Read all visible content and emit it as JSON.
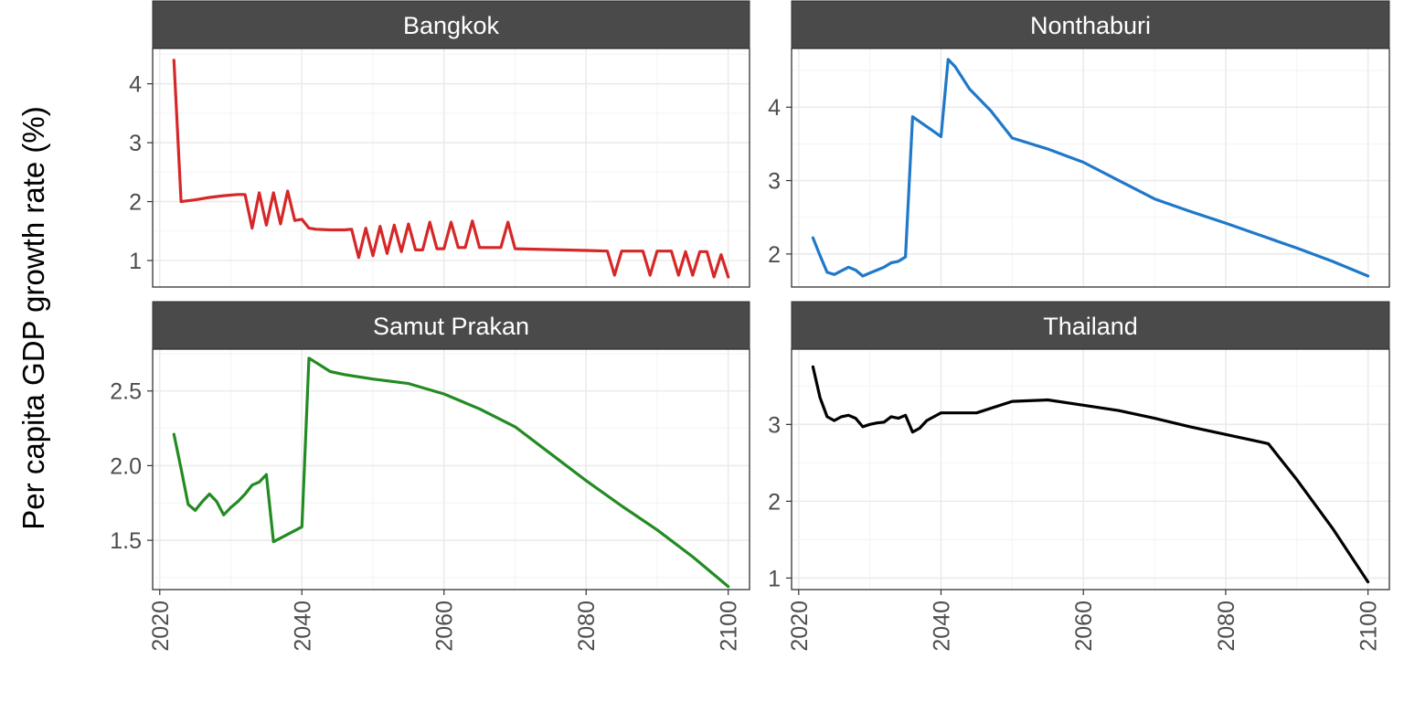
{
  "chart_data": {
    "type": "line",
    "ylabel": "Per capita GDP growth rate (%)",
    "xlabel": "",
    "x_ticks": [
      2020,
      2040,
      2060,
      2080,
      2100
    ],
    "xlim": [
      2019,
      2103
    ],
    "grid": true,
    "legend": "none",
    "panels": [
      {
        "title": "Bangkok",
        "color": "#d62728",
        "ylim": [
          0.55,
          4.6
        ],
        "y_ticks": [
          1,
          2,
          3,
          4
        ],
        "y_tick_labels": [
          "1",
          "2",
          "3",
          "4"
        ],
        "x": [
          2022,
          2023,
          2025,
          2027,
          2029,
          2031,
          2032,
          2033,
          2034,
          2035,
          2036,
          2037,
          2038,
          2039,
          2040,
          2041,
          2042,
          2044,
          2046,
          2047,
          2048,
          2049,
          2050,
          2051,
          2052,
          2053,
          2054,
          2055,
          2056,
          2057,
          2058,
          2059,
          2060,
          2061,
          2062,
          2063,
          2064,
          2065,
          2066,
          2067,
          2068,
          2069,
          2070,
          2080,
          2083,
          2084,
          2085,
          2086,
          2088,
          2089,
          2090,
          2091,
          2092,
          2093,
          2094,
          2095,
          2096,
          2097,
          2098,
          2099,
          2100
        ],
        "y": [
          4.4,
          2.0,
          2.03,
          2.07,
          2.1,
          2.12,
          2.12,
          1.55,
          2.15,
          1.6,
          2.15,
          1.62,
          2.18,
          1.68,
          1.7,
          1.55,
          1.53,
          1.52,
          1.52,
          1.53,
          1.05,
          1.55,
          1.08,
          1.58,
          1.12,
          1.6,
          1.15,
          1.62,
          1.18,
          1.18,
          1.65,
          1.2,
          1.2,
          1.65,
          1.22,
          1.22,
          1.67,
          1.22,
          1.22,
          1.22,
          1.22,
          1.65,
          1.2,
          1.17,
          1.16,
          0.75,
          1.16,
          1.16,
          1.16,
          0.75,
          1.16,
          1.16,
          1.16,
          0.75,
          1.15,
          0.75,
          1.15,
          1.15,
          0.72,
          1.1,
          0.72
        ]
      },
      {
        "title": "Nonthaburi",
        "color": "#1f78c8",
        "ylim": [
          1.55,
          4.8
        ],
        "y_ticks": [
          2,
          3,
          4
        ],
        "y_tick_labels": [
          "2",
          "3",
          "4"
        ],
        "x": [
          2022,
          2023,
          2024,
          2025,
          2026,
          2027,
          2028,
          2029,
          2030,
          2031,
          2032,
          2033,
          2034,
          2035,
          2036,
          2040,
          2041,
          2042,
          2044,
          2047,
          2050,
          2055,
          2060,
          2065,
          2070,
          2075,
          2080,
          2085,
          2090,
          2095,
          2100
        ],
        "y": [
          2.22,
          1.98,
          1.75,
          1.72,
          1.77,
          1.82,
          1.78,
          1.7,
          1.74,
          1.78,
          1.82,
          1.88,
          1.9,
          1.96,
          3.87,
          3.6,
          4.65,
          4.55,
          4.25,
          3.95,
          3.58,
          3.43,
          3.25,
          3.0,
          2.75,
          2.58,
          2.42,
          2.25,
          2.08,
          1.9,
          1.7
        ]
      },
      {
        "title": "Samut Prakan",
        "color": "#228b22",
        "ylim": [
          1.17,
          2.78
        ],
        "y_ticks": [
          1.5,
          2.0,
          2.5
        ],
        "y_tick_labels": [
          "1.5",
          "2.0",
          "2.5"
        ],
        "x": [
          2022,
          2023,
          2024,
          2025,
          2026,
          2027,
          2028,
          2029,
          2030,
          2031,
          2032,
          2033,
          2034,
          2035,
          2036,
          2040,
          2041,
          2042,
          2044,
          2046,
          2050,
          2055,
          2060,
          2065,
          2070,
          2075,
          2080,
          2085,
          2090,
          2095,
          2100
        ],
        "y": [
          2.21,
          1.98,
          1.74,
          1.7,
          1.76,
          1.81,
          1.76,
          1.67,
          1.72,
          1.76,
          1.81,
          1.87,
          1.89,
          1.94,
          1.49,
          1.59,
          2.72,
          2.69,
          2.63,
          2.61,
          2.58,
          2.55,
          2.48,
          2.38,
          2.26,
          2.08,
          1.9,
          1.73,
          1.57,
          1.39,
          1.19
        ]
      },
      {
        "title": "Thailand",
        "color": "#000000",
        "ylim": [
          0.85,
          3.98
        ],
        "y_ticks": [
          1,
          2,
          3
        ],
        "y_tick_labels": [
          "1",
          "2",
          "3"
        ],
        "x": [
          2022,
          2023,
          2024,
          2025,
          2026,
          2027,
          2028,
          2029,
          2030,
          2031,
          2032,
          2033,
          2034,
          2035,
          2036,
          2037,
          2038,
          2039,
          2040,
          2045,
          2050,
          2055,
          2060,
          2065,
          2070,
          2075,
          2080,
          2085,
          2086,
          2090,
          2095,
          2100
        ],
        "y": [
          3.75,
          3.35,
          3.1,
          3.05,
          3.1,
          3.12,
          3.08,
          2.97,
          3.0,
          3.02,
          3.03,
          3.1,
          3.08,
          3.12,
          2.9,
          2.95,
          3.05,
          3.1,
          3.15,
          3.15,
          3.3,
          3.32,
          3.25,
          3.18,
          3.08,
          2.97,
          2.87,
          2.77,
          2.75,
          2.28,
          1.65,
          0.95
        ]
      }
    ]
  }
}
